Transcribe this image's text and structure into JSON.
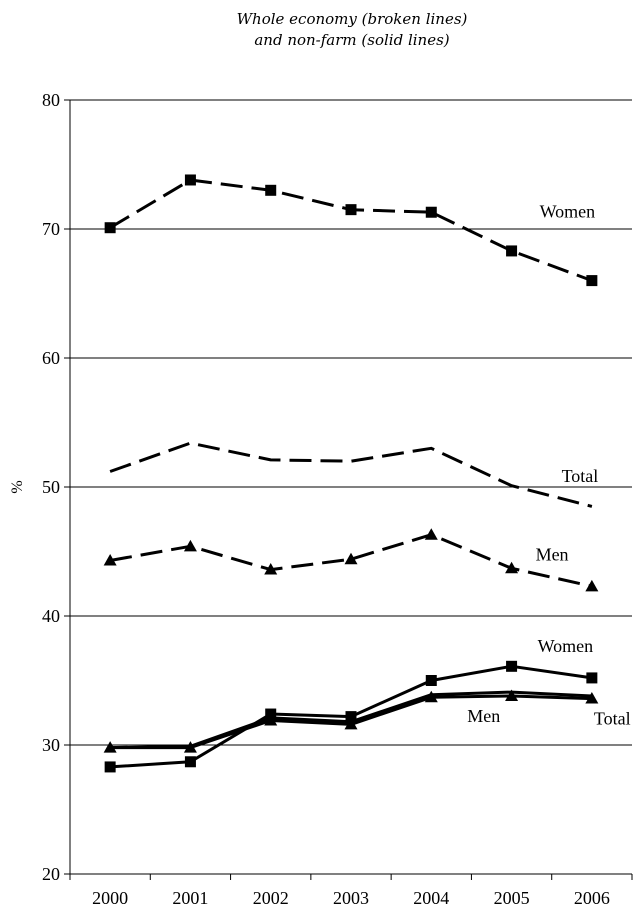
{
  "chart_data": {
    "type": "line",
    "title_lines": [
      "Whole economy (broken lines)",
      "and non-farm (solid lines)"
    ],
    "ylabel": "%",
    "xlabel": "",
    "ylim": [
      20,
      80
    ],
    "yticks": [
      20,
      30,
      40,
      50,
      60,
      70,
      80
    ],
    "grid": true,
    "x": [
      "2000",
      "2001",
      "2002",
      "2003",
      "2004",
      "2005",
      "2006"
    ],
    "series": [
      {
        "name": "Women",
        "group": "whole-economy",
        "style": "dashed",
        "marker": "square",
        "values": [
          70.1,
          73.8,
          73.0,
          71.5,
          71.3,
          68.3,
          66.0
        ]
      },
      {
        "name": "Total",
        "group": "whole-economy",
        "style": "dashed",
        "marker": "none",
        "values": [
          51.2,
          53.4,
          52.1,
          52.0,
          53.0,
          50.1,
          48.5
        ]
      },
      {
        "name": "Men",
        "group": "whole-economy",
        "style": "dashed",
        "marker": "triangle",
        "values": [
          44.3,
          45.4,
          43.6,
          44.4,
          46.3,
          43.7,
          42.3
        ]
      },
      {
        "name": "Women",
        "group": "non-farm",
        "style": "solid",
        "marker": "square",
        "values": [
          28.3,
          28.7,
          32.4,
          32.2,
          35.0,
          36.1,
          35.2
        ]
      },
      {
        "name": "Total",
        "group": "non-farm",
        "style": "solid",
        "marker": "none",
        "values": [
          29.8,
          29.9,
          32.1,
          31.8,
          33.9,
          34.1,
          33.8
        ]
      },
      {
        "name": "Men",
        "group": "non-farm",
        "style": "solid",
        "marker": "triangle",
        "values": [
          29.8,
          29.8,
          31.9,
          31.6,
          33.7,
          33.8,
          33.6
        ]
      }
    ],
    "annotations": [
      {
        "text": "Women",
        "series_index": 0
      },
      {
        "text": "Total",
        "series_index": 1
      },
      {
        "text": "Men",
        "series_index": 2
      },
      {
        "text": "Women",
        "series_index": 3
      },
      {
        "text": "Men",
        "series_index": 5
      },
      {
        "text": "Total",
        "series_index": 4
      }
    ]
  }
}
